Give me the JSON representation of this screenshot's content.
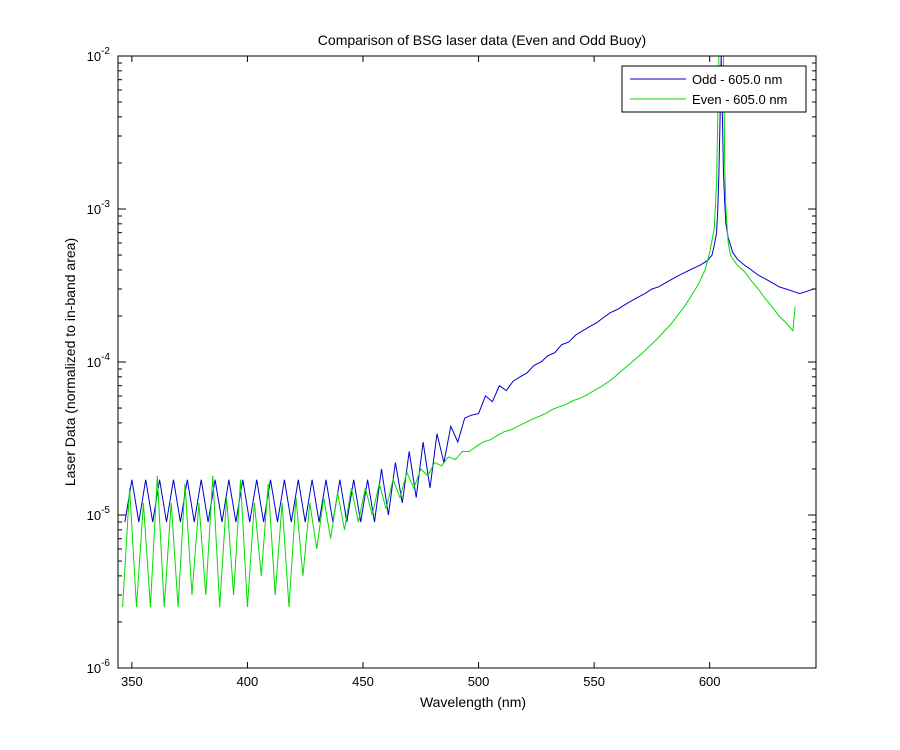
{
  "chart_data": {
    "type": "line",
    "title": "Comparison of BSG laser data (Even and Odd Buoy)",
    "xlabel": "Wavelength (nm)",
    "ylabel": "Laser Data (normalized to in-band area)",
    "xlim": [
      344,
      646
    ],
    "ylim": [
      1e-06,
      0.01
    ],
    "yscale": "log",
    "grid": false,
    "legend_position": "top-right",
    "x_ticks": [
      350,
      400,
      450,
      500,
      550,
      600
    ],
    "x_tick_labels": [
      "350",
      "400",
      "450",
      "500",
      "550",
      "600"
    ],
    "y_ticks": [
      1e-06,
      1e-05,
      0.0001,
      0.001,
      0.01
    ],
    "y_tick_labels": [
      {
        "base": "10",
        "exp": "-6"
      },
      {
        "base": "10",
        "exp": "-5"
      },
      {
        "base": "10",
        "exp": "-4"
      },
      {
        "base": "10",
        "exp": "-3"
      },
      {
        "base": "10",
        "exp": "-2"
      }
    ],
    "series": [
      {
        "name": "Odd - 605.0 nm",
        "color": "#0000cc",
        "x": [
          347,
          350,
          353,
          356,
          359,
          362,
          365,
          368,
          371,
          374,
          377,
          380,
          383,
          386,
          389,
          392,
          395,
          398,
          401,
          404,
          407,
          410,
          413,
          416,
          419,
          422,
          425,
          428,
          431,
          434,
          437,
          440,
          443,
          446,
          449,
          452,
          455,
          458,
          461,
          464,
          467,
          470,
          473,
          476,
          479,
          482,
          485,
          488,
          491,
          494,
          497,
          500,
          503,
          506,
          509,
          512,
          515,
          518,
          521,
          524,
          527,
          530,
          533,
          536,
          539,
          542,
          545,
          548,
          551,
          554,
          557,
          560,
          563,
          566,
          569,
          572,
          575,
          578,
          581,
          584,
          587,
          590,
          593,
          596,
          599,
          601,
          602,
          603,
          603.5,
          604,
          604.5,
          605,
          605.5,
          606,
          606.5,
          607,
          608,
          609,
          610,
          612,
          615,
          618,
          621,
          624,
          627,
          630,
          633,
          636,
          639,
          642,
          645
        ],
        "values": [
          9e-06,
          1.7e-05,
          9e-06,
          1.7e-05,
          9e-06,
          1.7e-05,
          9e-06,
          1.7e-05,
          9e-06,
          1.7e-05,
          9e-06,
          1.7e-05,
          9e-06,
          1.7e-05,
          9e-06,
          1.7e-05,
          9e-06,
          1.7e-05,
          9e-06,
          1.7e-05,
          9e-06,
          1.7e-05,
          9e-06,
          1.7e-05,
          9e-06,
          1.7e-05,
          9e-06,
          1.7e-05,
          9e-06,
          1.7e-05,
          9e-06,
          1.7e-05,
          9e-06,
          1.7e-05,
          9e-06,
          1.7e-05,
          9e-06,
          2e-05,
          1e-05,
          2.2e-05,
          1.2e-05,
          2.6e-05,
          1.3e-05,
          3e-05,
          1.5e-05,
          3.4e-05,
          2.2e-05,
          3.8e-05,
          3e-05,
          4.3e-05,
          4.5e-05,
          4.6e-05,
          6e-05,
          5.5e-05,
          7e-05,
          6.5e-05,
          7.5e-05,
          8e-05,
          8.5e-05,
          9.5e-05,
          0.0001,
          0.00011,
          0.000115,
          0.00013,
          0.000135,
          0.00015,
          0.00016,
          0.00017,
          0.00018,
          0.000195,
          0.00021,
          0.00022,
          0.000235,
          0.00025,
          0.000265,
          0.00028,
          0.0003,
          0.00031,
          0.00033,
          0.00035,
          0.00037,
          0.00039,
          0.00041,
          0.00043,
          0.00046,
          0.0005,
          0.00058,
          0.0007,
          0.001,
          0.0017,
          0.004,
          0.01,
          0.004,
          0.0017,
          0.0011,
          0.0008,
          0.00065,
          0.00058,
          0.00052,
          0.00047,
          0.00043,
          0.0004,
          0.00037,
          0.00035,
          0.00033,
          0.00031,
          0.0003,
          0.00029,
          0.00028,
          0.00029,
          0.0003
        ]
      },
      {
        "name": "Even - 605.0 nm",
        "color": "#00dd00",
        "x": [
          346,
          349,
          352,
          355,
          358,
          361,
          364,
          367,
          370,
          373,
          376,
          379,
          382,
          385,
          388,
          391,
          394,
          397,
          400,
          403,
          406,
          409,
          412,
          415,
          418,
          421,
          424,
          427,
          430,
          433,
          436,
          439,
          442,
          445,
          448,
          451,
          454,
          457,
          460,
          463,
          466,
          469,
          472,
          475,
          478,
          481,
          484,
          487,
          490,
          493,
          496,
          499,
          502,
          505,
          508,
          511,
          514,
          517,
          520,
          523,
          526,
          529,
          532,
          535,
          538,
          541,
          544,
          547,
          550,
          553,
          556,
          559,
          562,
          565,
          568,
          571,
          574,
          577,
          580,
          583,
          586,
          589,
          592,
          595,
          598,
          600,
          602,
          603,
          604,
          605,
          606,
          606.5,
          607,
          608,
          609,
          610,
          612,
          615,
          618,
          621,
          624,
          627,
          630,
          633,
          636,
          637
        ],
        "values": [
          2.5e-06,
          1.5e-05,
          2.5e-06,
          1.2e-05,
          2.5e-06,
          1.8e-05,
          2.5e-06,
          1.2e-05,
          2.5e-06,
          1.6e-05,
          3e-06,
          1.2e-05,
          3e-06,
          1.8e-05,
          2.5e-06,
          1.3e-05,
          3e-06,
          1.7e-05,
          2.5e-06,
          1.2e-05,
          4e-06,
          1.6e-05,
          3e-06,
          1.2e-05,
          2.5e-06,
          1.3e-05,
          4e-06,
          1.2e-05,
          6e-06,
          1.3e-05,
          7e-06,
          1.4e-05,
          8e-06,
          1.5e-05,
          9e-06,
          1.5e-05,
          1e-05,
          1.6e-05,
          1.1e-05,
          1.7e-05,
          1.3e-05,
          1.9e-05,
          1.5e-05,
          2e-05,
          1.8e-05,
          2.2e-05,
          2.1e-05,
          2.4e-05,
          2.3e-05,
          2.6e-05,
          2.6e-05,
          2.8e-05,
          3e-05,
          3.1e-05,
          3.3e-05,
          3.5e-05,
          3.6e-05,
          3.8e-05,
          4e-05,
          4.2e-05,
          4.4e-05,
          4.6e-05,
          4.9e-05,
          5.1e-05,
          5.3e-05,
          5.6e-05,
          5.8e-05,
          6.1e-05,
          6.5e-05,
          6.9e-05,
          7.4e-05,
          8e-05,
          8.8e-05,
          9.6e-05,
          0.000105,
          0.000115,
          0.000127,
          0.00014,
          0.000157,
          0.000175,
          0.0002,
          0.00023,
          0.00027,
          0.00032,
          0.0004,
          0.00052,
          0.00075,
          0.0015,
          0.01,
          0.01,
          0.01,
          0.002,
          0.001,
          0.0006,
          0.0005,
          0.00047,
          0.00043,
          0.00039,
          0.00034,
          0.0003,
          0.00026,
          0.00023,
          0.0002,
          0.00018,
          0.00016,
          0.00023
        ]
      }
    ]
  }
}
